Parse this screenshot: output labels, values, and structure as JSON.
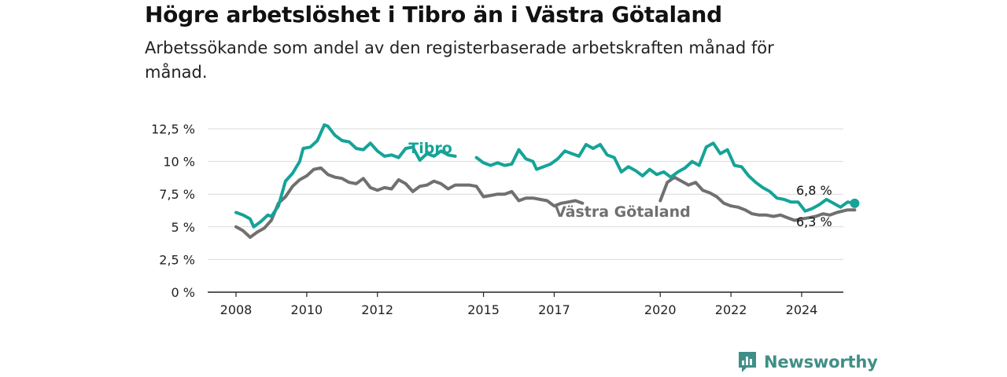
{
  "header": {
    "title": "Högre arbetslöshet i Tibro än i Västra Götaland",
    "subtitle": "Arbetssökande som andel av den registerbaserade arbetskraften månad för månad."
  },
  "brand": {
    "name": "Newsworthy",
    "icon": "newsworthy-logo-icon",
    "color": "#3f8f87"
  },
  "chart_data": {
    "type": "line",
    "title": "Högre arbetslöshet i Tibro än i Västra Götaland",
    "subtitle": "Arbetssökande som andel av den registerbaserade arbetskraften månad för månad.",
    "ylim": [
      0,
      12.5
    ],
    "xlim": [
      2007.5,
      2025.3
    ],
    "y_ticks": [
      0,
      2.5,
      5,
      7.5,
      10,
      12.5
    ],
    "y_tick_labels": [
      "0 %",
      "2,5 %",
      "5 %",
      "7,5 %",
      "10 %",
      "12,5 %"
    ],
    "x_ticks": [
      2008,
      2010,
      2012,
      2015,
      2017,
      2020,
      2022,
      2024
    ],
    "x_tick_labels": [
      "2008",
      "2010",
      "2012",
      "2015",
      "2017",
      "2020",
      "2022",
      "2024"
    ],
    "grid": "horizontal",
    "series": [
      {
        "name": "Tibro",
        "color": "#15a398",
        "last_label": "6,8 %",
        "points": [
          [
            2008.0,
            6.1
          ],
          [
            2008.2,
            5.9
          ],
          [
            2008.4,
            5.6
          ],
          [
            2008.5,
            5.0
          ],
          [
            2008.7,
            5.4
          ],
          [
            2008.9,
            5.9
          ],
          [
            2009.0,
            5.8
          ],
          [
            2009.2,
            6.6
          ],
          [
            2009.4,
            8.5
          ],
          [
            2009.6,
            9.1
          ],
          [
            2009.8,
            10.0
          ],
          [
            2009.9,
            11.0
          ],
          [
            2010.1,
            11.1
          ],
          [
            2010.3,
            11.6
          ],
          [
            2010.5,
            12.8
          ],
          [
            2010.6,
            12.7
          ],
          [
            2010.8,
            12.0
          ],
          [
            2011.0,
            11.6
          ],
          [
            2011.2,
            11.5
          ],
          [
            2011.4,
            11.0
          ],
          [
            2011.6,
            10.9
          ],
          [
            2011.8,
            11.4
          ],
          [
            2012.0,
            10.8
          ],
          [
            2012.2,
            10.4
          ],
          [
            2012.4,
            10.5
          ],
          [
            2012.6,
            10.3
          ],
          [
            2012.8,
            11.0
          ],
          [
            2013.0,
            11.1
          ],
          [
            2013.2,
            10.1
          ],
          [
            2013.4,
            10.6
          ],
          [
            2013.6,
            10.4
          ],
          [
            2013.8,
            10.8
          ],
          [
            2014.0,
            10.5
          ],
          [
            2014.2,
            10.4
          ]
        ]
      },
      {
        "name": "Tibro",
        "color": "#15a398",
        "points": [
          [
            2014.8,
            10.3
          ],
          [
            2015.0,
            9.9
          ],
          [
            2015.2,
            9.7
          ],
          [
            2015.4,
            9.9
          ],
          [
            2015.6,
            9.7
          ],
          [
            2015.8,
            9.8
          ],
          [
            2016.0,
            10.9
          ],
          [
            2016.2,
            10.2
          ],
          [
            2016.4,
            10.0
          ],
          [
            2016.5,
            9.4
          ],
          [
            2016.7,
            9.6
          ],
          [
            2016.9,
            9.8
          ],
          [
            2017.1,
            10.2
          ],
          [
            2017.3,
            10.8
          ],
          [
            2017.5,
            10.6
          ],
          [
            2017.7,
            10.4
          ],
          [
            2017.9,
            11.3
          ],
          [
            2018.1,
            11.0
          ],
          [
            2018.3,
            11.3
          ],
          [
            2018.5,
            10.5
          ],
          [
            2018.7,
            10.3
          ],
          [
            2018.9,
            9.2
          ],
          [
            2019.1,
            9.6
          ],
          [
            2019.3,
            9.3
          ],
          [
            2019.5,
            8.9
          ],
          [
            2019.7,
            9.4
          ],
          [
            2019.9,
            9.0
          ],
          [
            2020.1,
            9.2
          ],
          [
            2020.3,
            8.8
          ],
          [
            2020.5,
            9.2
          ],
          [
            2020.7,
            9.5
          ],
          [
            2020.9,
            10.0
          ],
          [
            2021.1,
            9.7
          ],
          [
            2021.3,
            11.1
          ],
          [
            2021.5,
            11.4
          ],
          [
            2021.7,
            10.6
          ],
          [
            2021.9,
            10.9
          ],
          [
            2022.1,
            9.7
          ],
          [
            2022.3,
            9.6
          ],
          [
            2022.5,
            8.9
          ],
          [
            2022.7,
            8.4
          ],
          [
            2022.9,
            8.0
          ],
          [
            2023.1,
            7.7
          ],
          [
            2023.3,
            7.2
          ],
          [
            2023.5,
            7.1
          ],
          [
            2023.7,
            6.9
          ],
          [
            2023.9,
            6.9
          ],
          [
            2024.1,
            6.2
          ],
          [
            2024.3,
            6.4
          ],
          [
            2024.5,
            6.7
          ],
          [
            2024.7,
            7.1
          ],
          [
            2024.9,
            6.8
          ],
          [
            2025.1,
            6.5
          ],
          [
            2025.3,
            6.9
          ],
          [
            2025.5,
            6.8
          ]
        ]
      },
      {
        "name": "Västra Götaland",
        "color": "#707070",
        "last_label": "6,3 %",
        "points": [
          [
            2008.0,
            5.0
          ],
          [
            2008.2,
            4.7
          ],
          [
            2008.4,
            4.2
          ],
          [
            2008.6,
            4.6
          ],
          [
            2008.8,
            4.9
          ],
          [
            2009.0,
            5.5
          ],
          [
            2009.2,
            6.8
          ],
          [
            2009.4,
            7.3
          ],
          [
            2009.6,
            8.1
          ],
          [
            2009.8,
            8.6
          ],
          [
            2010.0,
            8.9
          ],
          [
            2010.2,
            9.4
          ],
          [
            2010.4,
            9.5
          ],
          [
            2010.6,
            9.0
          ],
          [
            2010.8,
            8.8
          ],
          [
            2011.0,
            8.7
          ],
          [
            2011.2,
            8.4
          ],
          [
            2011.4,
            8.3
          ],
          [
            2011.6,
            8.7
          ],
          [
            2011.8,
            8.0
          ],
          [
            2012.0,
            7.8
          ],
          [
            2012.2,
            8.0
          ],
          [
            2012.4,
            7.9
          ],
          [
            2012.6,
            8.6
          ],
          [
            2012.8,
            8.3
          ],
          [
            2013.0,
            7.7
          ],
          [
            2013.2,
            8.1
          ],
          [
            2013.4,
            8.2
          ],
          [
            2013.6,
            8.5
          ],
          [
            2013.8,
            8.3
          ],
          [
            2014.0,
            7.9
          ],
          [
            2014.2,
            8.2
          ],
          [
            2014.4,
            8.2
          ],
          [
            2014.6,
            8.2
          ],
          [
            2014.8,
            8.1
          ],
          [
            2015.0,
            7.3
          ],
          [
            2015.2,
            7.4
          ],
          [
            2015.4,
            7.5
          ],
          [
            2015.6,
            7.5
          ],
          [
            2015.8,
            7.7
          ],
          [
            2016.0,
            7.0
          ],
          [
            2016.2,
            7.2
          ],
          [
            2016.4,
            7.2
          ],
          [
            2016.6,
            7.1
          ],
          [
            2016.8,
            7.0
          ],
          [
            2017.0,
            6.6
          ],
          [
            2017.2,
            6.8
          ],
          [
            2017.4,
            6.9
          ],
          [
            2017.6,
            7.0
          ],
          [
            2017.8,
            6.8
          ]
        ]
      },
      {
        "name": "Västra Götaland",
        "color": "#707070",
        "points": [
          [
            2020.0,
            7.0
          ],
          [
            2020.2,
            8.4
          ],
          [
            2020.4,
            8.8
          ],
          [
            2020.6,
            8.5
          ],
          [
            2020.8,
            8.2
          ],
          [
            2021.0,
            8.4
          ],
          [
            2021.2,
            7.8
          ],
          [
            2021.4,
            7.6
          ],
          [
            2021.6,
            7.3
          ],
          [
            2021.8,
            6.8
          ],
          [
            2022.0,
            6.6
          ],
          [
            2022.2,
            6.5
          ],
          [
            2022.4,
            6.3
          ],
          [
            2022.6,
            6.0
          ],
          [
            2022.8,
            5.9
          ],
          [
            2023.0,
            5.9
          ],
          [
            2023.2,
            5.8
          ],
          [
            2023.4,
            5.9
          ],
          [
            2023.6,
            5.7
          ],
          [
            2023.8,
            5.5
          ],
          [
            2024.0,
            5.6
          ],
          [
            2024.2,
            5.7
          ],
          [
            2024.4,
            5.8
          ],
          [
            2024.6,
            6.0
          ],
          [
            2024.8,
            5.9
          ],
          [
            2025.0,
            6.1
          ],
          [
            2025.3,
            6.3
          ],
          [
            2025.5,
            6.3
          ]
        ]
      }
    ],
    "labels": {
      "tibro": "Tibro",
      "vg": "Västra Götaland",
      "tibro_last": "6,8 %",
      "vg_last": "6,3 %"
    }
  }
}
